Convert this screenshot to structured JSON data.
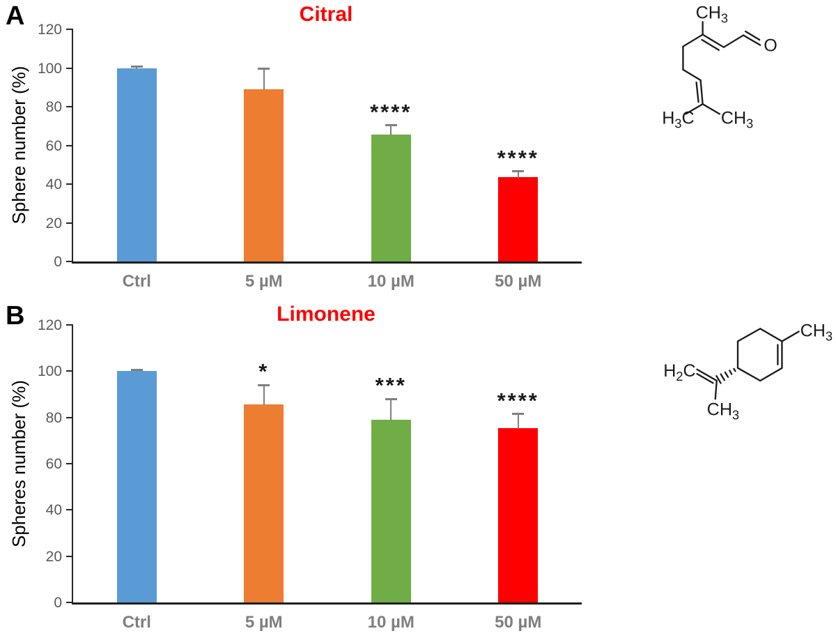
{
  "figure": {
    "background": "#ffffff",
    "accent_title_color": "#FF0000",
    "axis_color": "#262626",
    "tick_label_color": "#595959",
    "category_label_color": "#7F7F7F"
  },
  "panels": [
    {
      "panel_label": "A",
      "title": "Citral",
      "ylabel": "Sphere number (%)"
    },
    {
      "panel_label": "B",
      "title": "Limonene",
      "ylabel": "Spheres number (%)"
    }
  ],
  "chart_data": [
    {
      "type": "bar",
      "title": "Citral",
      "xlabel": "",
      "ylabel": "Sphere number (%)",
      "categories": [
        "Ctrl",
        "5 µM",
        "10 µM",
        "50 µM"
      ],
      "values": [
        100,
        89,
        65.5,
        43.5
      ],
      "errors_plus": [
        0.7,
        10.5,
        5,
        3
      ],
      "significance": [
        "",
        "",
        "****",
        "****"
      ],
      "bar_colors": [
        "#5B9BD5",
        "#ED7D31",
        "#70AD47",
        "#FF0000"
      ],
      "error_bar_color": "#7F7F7F",
      "title_color": "#FF0000",
      "ylim": [
        0,
        120
      ],
      "ytick_step": 20,
      "grid": false,
      "legend": null
    },
    {
      "type": "bar",
      "title": "Limonene",
      "xlabel": "",
      "ylabel": "Spheres number (%)",
      "categories": [
        "Ctrl",
        "5 µM",
        "10 µM",
        "50 µM"
      ],
      "values": [
        100,
        85.5,
        79,
        75.5
      ],
      "errors_plus": [
        0.5,
        8.5,
        9,
        6
      ],
      "significance": [
        "",
        "*",
        "***",
        "****"
      ],
      "bar_colors": [
        "#5B9BD5",
        "#ED7D31",
        "#70AD47",
        "#FF0000"
      ],
      "error_bar_color": "#7F7F7F",
      "title_color": "#FF0000",
      "ylim": [
        0,
        120
      ],
      "ytick_step": 20,
      "grid": false,
      "legend": null
    }
  ],
  "structures": [
    {
      "name": "citral",
      "labels": {
        "methyl_top": {
          "p1": "CH",
          "sub": "3",
          "p2": ""
        },
        "oxygen": {
          "p1": "O"
        },
        "methyl_left": {
          "p1": "H",
          "sub": "3",
          "p2": "C"
        },
        "methyl_right": {
          "p1": "CH",
          "sub": "3",
          "p2": ""
        }
      }
    },
    {
      "name": "limonene",
      "labels": {
        "methyl_ring": {
          "p1": "CH",
          "sub": "3",
          "p2": ""
        },
        "methylene": {
          "p1": "H",
          "sub": "2",
          "p2": "C"
        },
        "methyl_iso": {
          "p1": "CH",
          "sub": "3",
          "p2": ""
        }
      }
    }
  ]
}
